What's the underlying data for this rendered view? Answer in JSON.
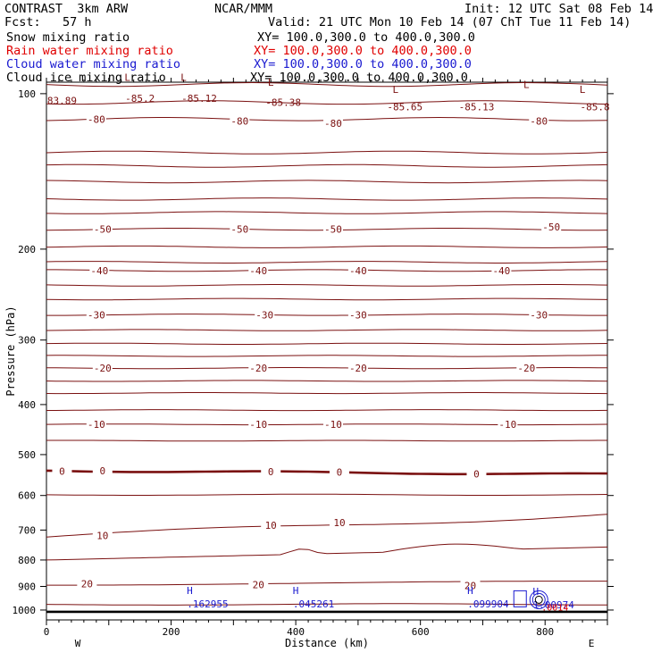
{
  "header": {
    "model": "CONTRAST  3km ARW",
    "center": "NCAR/MMM",
    "init": "Init: 12 UTC Sat 08 Feb 14",
    "fcst": "Fcst:   57 h",
    "valid": "Valid: 21 UTC Mon 10 Feb 14 (07 ChT Tue 11 Feb 14)"
  },
  "fields": [
    {
      "name": "Snow mixing ratio",
      "xy": "XY= 100.0,300.0 to 400.0,300.0",
      "color": "#000000"
    },
    {
      "name": "Rain water mixing ratio",
      "xy": "XY= 100.0,300.0 to 400.0,300.0",
      "color": "#e00000"
    },
    {
      "name": "Cloud water mixing ratio",
      "xy": "XY= 100.0,300.0 to 400.0,300.0",
      "color": "#1a1ad0"
    },
    {
      "name": "Cloud ice mixing ratio",
      "xy": "XY= 100.0,300.0 to 400.0,300.0",
      "color": "#000000"
    }
  ],
  "chart_data": {
    "type": "line",
    "title": "",
    "xlabel": "Distance (km)",
    "ylabel": "Pressure (hPa)",
    "xlim": [
      0,
      900
    ],
    "ylim": [
      1045,
      95
    ],
    "y_scale": "log",
    "x_ticks": [
      0,
      200,
      400,
      600,
      800
    ],
    "y_ticks": [
      100,
      200,
      300,
      400,
      500,
      600,
      700,
      800,
      900,
      1000
    ],
    "x_end_labels": {
      "left": "W",
      "right": "E"
    },
    "contour_color": "#7a1010",
    "isotherms": [
      {
        "level": "-80",
        "labels": [
          [
            80,
            112
          ],
          [
            310,
            113
          ],
          [
            460,
            114
          ],
          [
            790,
            113
          ]
        ]
      },
      {
        "level": "-50",
        "labels": [
          [
            90,
            183
          ],
          [
            310,
            183
          ],
          [
            460,
            183
          ],
          [
            810,
            181
          ]
        ]
      },
      {
        "level": "-40",
        "labels": [
          [
            85,
            220
          ],
          [
            340,
            220
          ],
          [
            500,
            220
          ],
          [
            730,
            220
          ]
        ]
      },
      {
        "level": "-30",
        "labels": [
          [
            80,
            268
          ],
          [
            350,
            268
          ],
          [
            500,
            268
          ],
          [
            790,
            268
          ]
        ]
      },
      {
        "level": "-20",
        "labels": [
          [
            90,
            340
          ],
          [
            340,
            340
          ],
          [
            500,
            340
          ],
          [
            770,
            340
          ]
        ]
      },
      {
        "level": "-10",
        "labels": [
          [
            80,
            437
          ],
          [
            340,
            437
          ],
          [
            460,
            437
          ],
          [
            740,
            437
          ]
        ]
      },
      {
        "level": "0",
        "labels": [
          [
            25,
            538
          ],
          [
            90,
            537
          ],
          [
            360,
            539
          ],
          [
            470,
            541
          ],
          [
            690,
            545
          ]
        ]
      },
      {
        "level": "10",
        "labels": [
          [
            90,
            717
          ],
          [
            360,
            685
          ],
          [
            470,
            677
          ]
        ]
      },
      {
        "level": "20",
        "labels": [
          [
            65,
            890
          ],
          [
            340,
            893
          ],
          [
            680,
            896
          ]
        ]
      }
    ],
    "tropopause_lows": [
      {
        "x": 130,
        "p": 90
      },
      {
        "x": 220,
        "p": 90
      },
      {
        "x": 360,
        "p": 92
      },
      {
        "x": 560,
        "p": 95
      },
      {
        "x": 770,
        "p": 93
      },
      {
        "x": 860,
        "p": 95
      }
    ],
    "minima_values": [
      {
        "label": "83.89",
        "x": 25,
        "p": 103
      },
      {
        "label": "-85.2",
        "x": 150,
        "p": 102
      },
      {
        "label": "-85.12",
        "x": 245,
        "p": 102
      },
      {
        "label": "-85.38",
        "x": 380,
        "p": 104
      },
      {
        "label": "-85.65",
        "x": 575,
        "p": 106
      },
      {
        "label": "-85.13",
        "x": 690,
        "p": 106
      },
      {
        "label": "-85.8",
        "x": 880,
        "p": 106
      }
    ],
    "cloud_highs": [
      {
        "label": ".162955",
        "x": 230,
        "p": 962
      },
      {
        "label": ".045261",
        "x": 400,
        "p": 962
      },
      {
        "label": ".099904",
        "x": 680,
        "p": 962
      },
      {
        "label": "1.00974",
        "x": 785,
        "p": 965
      }
    ],
    "cloud_high_mark": "H",
    "low_mark": "L",
    "rain_label": ".0014"
  }
}
